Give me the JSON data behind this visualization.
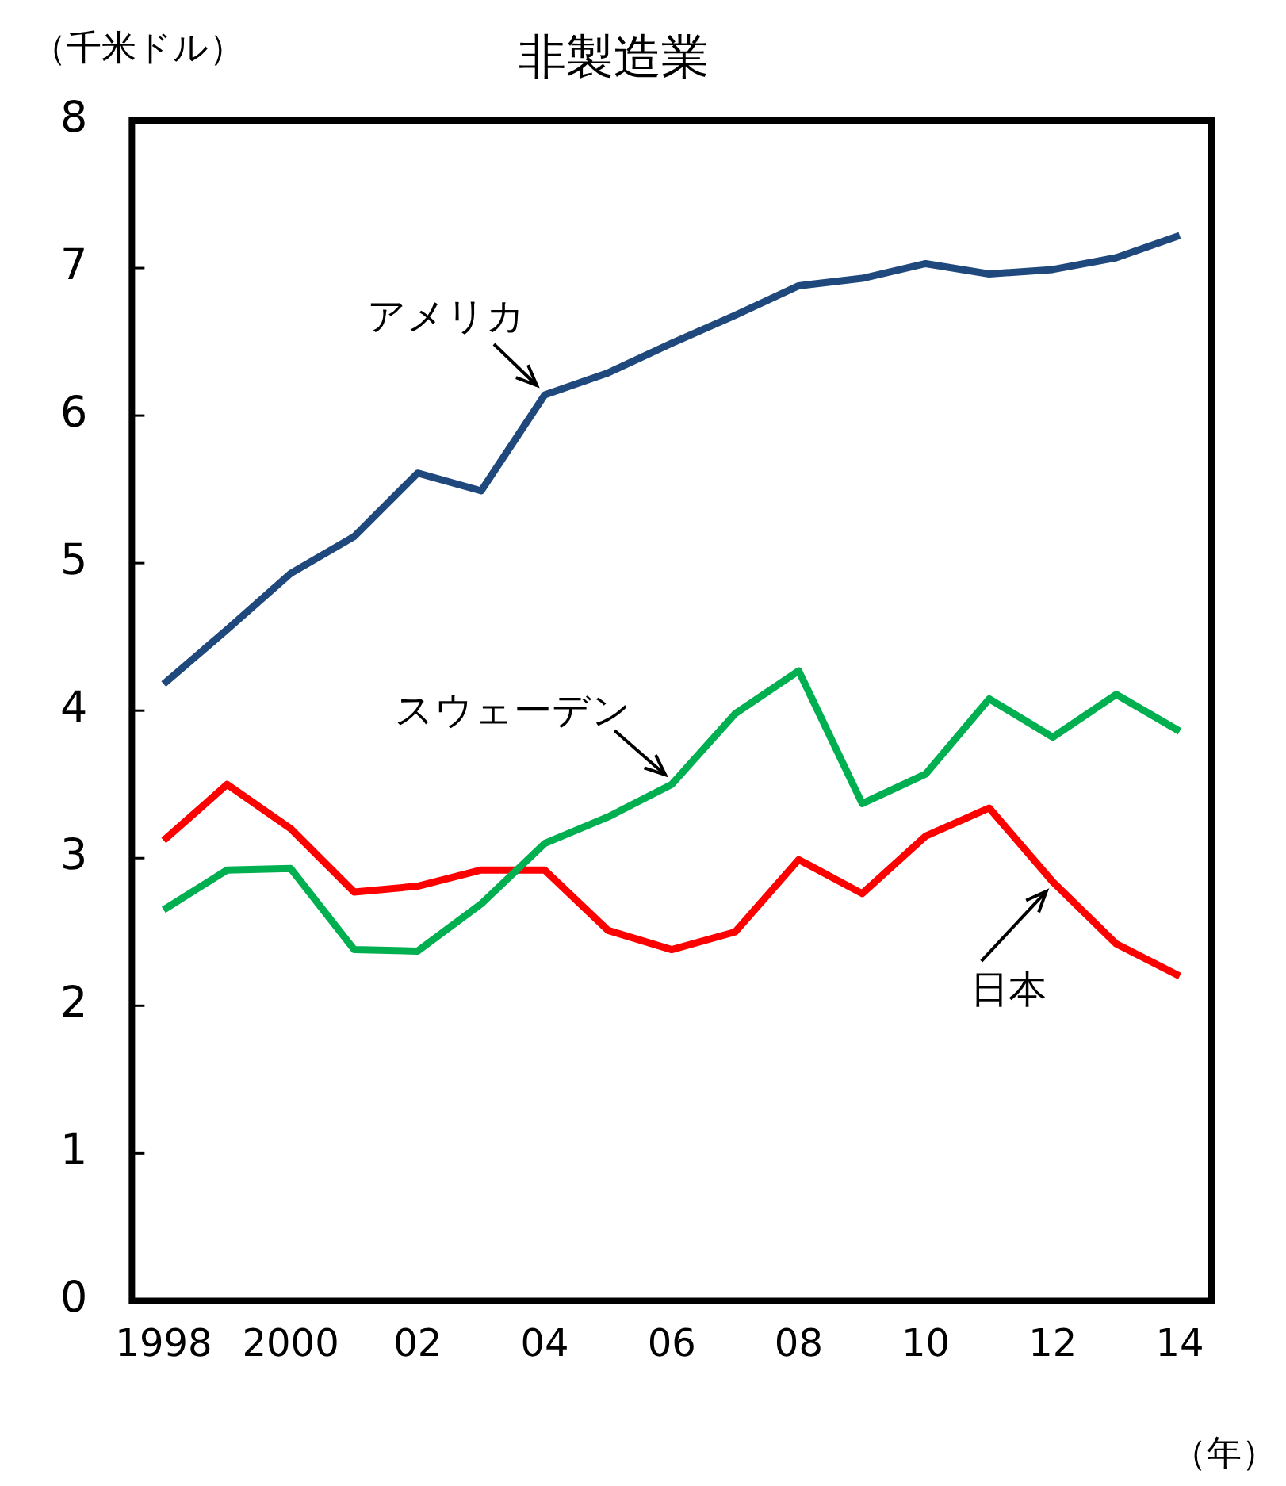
{
  "chart_data": {
    "type": "line",
    "title": "非製造業",
    "ylabel": "（千米ドル）",
    "xlabel": "（年）",
    "x": [
      1998,
      1999,
      2000,
      2001,
      2002,
      2003,
      2004,
      2005,
      2006,
      2007,
      2008,
      2009,
      2010,
      2011,
      2012,
      2013,
      2014
    ],
    "xlim": [
      1997.5,
      2014.5
    ],
    "xticks": [
      {
        "value": 1998,
        "label": "1998"
      },
      {
        "value": 2000,
        "label": "2000"
      },
      {
        "value": 2002,
        "label": "02"
      },
      {
        "value": 2004,
        "label": "04"
      },
      {
        "value": 2006,
        "label": "06"
      },
      {
        "value": 2008,
        "label": "08"
      },
      {
        "value": 2010,
        "label": "10"
      },
      {
        "value": 2012,
        "label": "12"
      },
      {
        "value": 2014,
        "label": "14"
      }
    ],
    "ylim": [
      0,
      8
    ],
    "yticks": [
      0,
      1,
      2,
      3,
      4,
      5,
      6,
      7,
      8
    ],
    "grid": false,
    "legend": false,
    "marker": "none",
    "line_style": "solid",
    "series": [
      {
        "name": "アメリカ",
        "color": "#1f497d",
        "values": [
          4.18,
          4.55,
          4.93,
          5.18,
          5.61,
          5.49,
          6.14,
          6.29,
          6.49,
          6.68,
          6.88,
          6.93,
          7.03,
          6.96,
          6.99,
          7.07,
          7.22
        ]
      },
      {
        "name": "スウェーデン",
        "color": "#00b050",
        "values": [
          2.65,
          2.92,
          2.93,
          2.38,
          2.37,
          2.69,
          3.1,
          3.28,
          3.5,
          3.98,
          4.27,
          3.37,
          3.57,
          4.08,
          3.82,
          4.11,
          3.86
        ]
      },
      {
        "name": "日本",
        "color": "#ff0000",
        "values": [
          3.12,
          3.5,
          3.2,
          2.77,
          2.81,
          2.92,
          2.92,
          2.51,
          2.38,
          2.5,
          2.99,
          2.76,
          3.15,
          3.34,
          2.84,
          2.42,
          2.2
        ]
      }
    ]
  }
}
